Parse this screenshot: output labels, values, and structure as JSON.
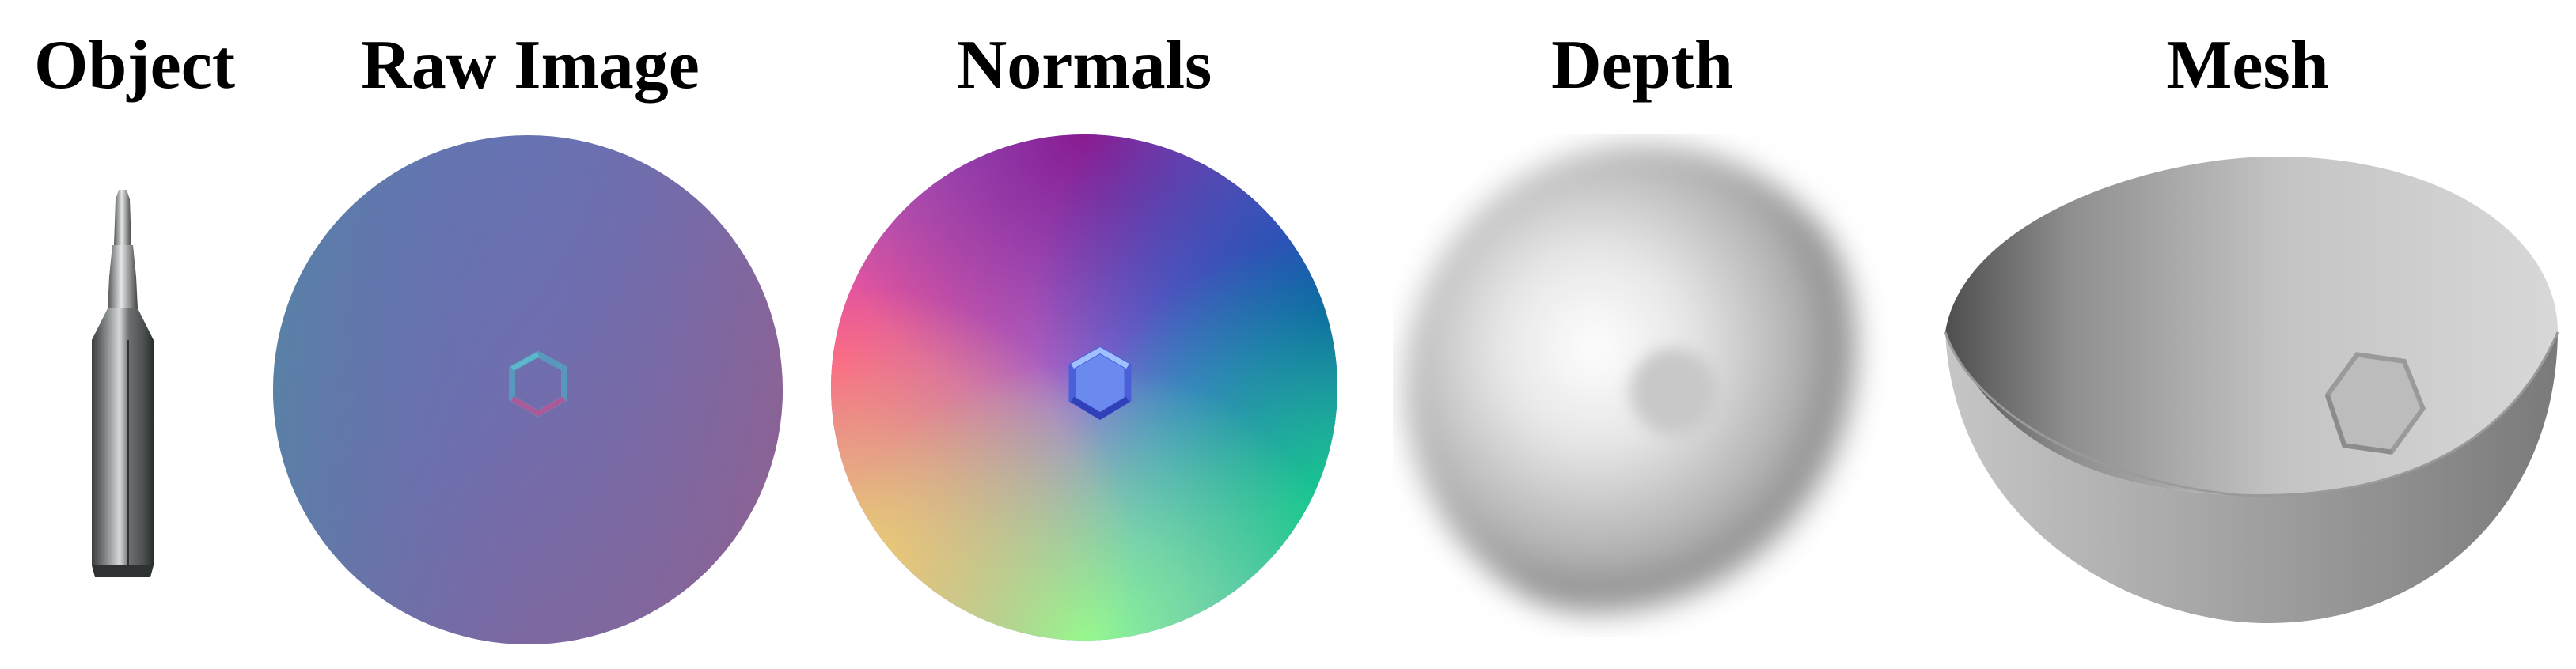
{
  "figure": {
    "panels": [
      {
        "id": "object",
        "title": "Object"
      },
      {
        "id": "raw-image",
        "title": "Raw Image"
      },
      {
        "id": "normals",
        "title": "Normals"
      },
      {
        "id": "depth",
        "title": "Depth"
      },
      {
        "id": "mesh",
        "title": "Mesh"
      }
    ]
  }
}
